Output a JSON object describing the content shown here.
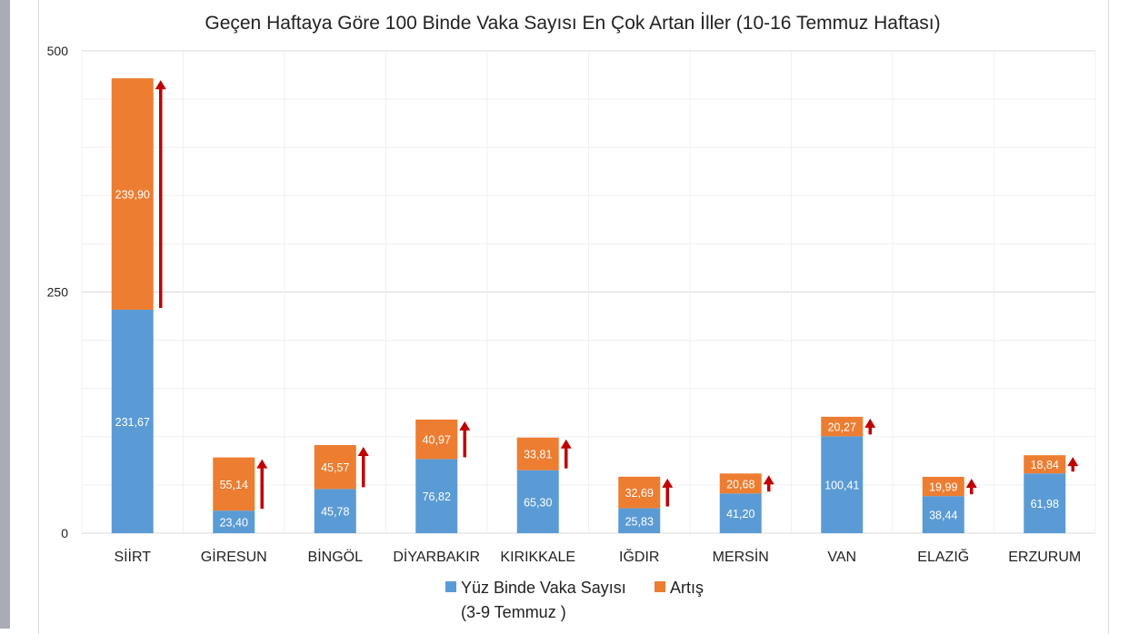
{
  "chart_data": {
    "type": "bar",
    "stacked": true,
    "title": "Geçen Haftaya Göre 100 Binde Vaka Sayısı En Çok Artan İller (10-16 Temmuz Haftası)",
    "xlabel": "",
    "ylabel": "",
    "ylim": [
      0,
      500
    ],
    "yticks": [
      0,
      250,
      500
    ],
    "grid": true,
    "legend_position": "bottom",
    "categories": [
      "SİİRT",
      "GİRESUN",
      "BİNGÖL",
      "DİYARBAKIR",
      "KIRIKKALE",
      "IĞDIR",
      "MERSİN",
      "VAN",
      "ELAZIĞ",
      "ERZURUM"
    ],
    "series": [
      {
        "name": "Yüz Binde Vaka Sayısı",
        "name_line2": "(3-9 Temmuz )",
        "color": "#5b9bd5",
        "values": [
          231.67,
          23.4,
          45.78,
          76.82,
          65.3,
          25.83,
          41.2,
          100.41,
          38.44,
          61.98
        ],
        "labels": [
          "231,67",
          "23,40",
          "45,78",
          "76,82",
          "65,30",
          "25,83",
          "41,20",
          "100,41",
          "38,44",
          "61,98"
        ]
      },
      {
        "name": "Artış",
        "color": "#ed7d31",
        "values": [
          239.9,
          55.14,
          45.57,
          40.97,
          33.81,
          32.69,
          20.68,
          20.27,
          19.99,
          18.84
        ],
        "labels": [
          "239,90",
          "55,14",
          "45,57",
          "40,97",
          "33,81",
          "32,69",
          "20,68",
          "20,27",
          "19,99",
          "18,84"
        ]
      }
    ],
    "annotations": {
      "increase_arrows": true,
      "arrow_color": "#c00000"
    }
  }
}
